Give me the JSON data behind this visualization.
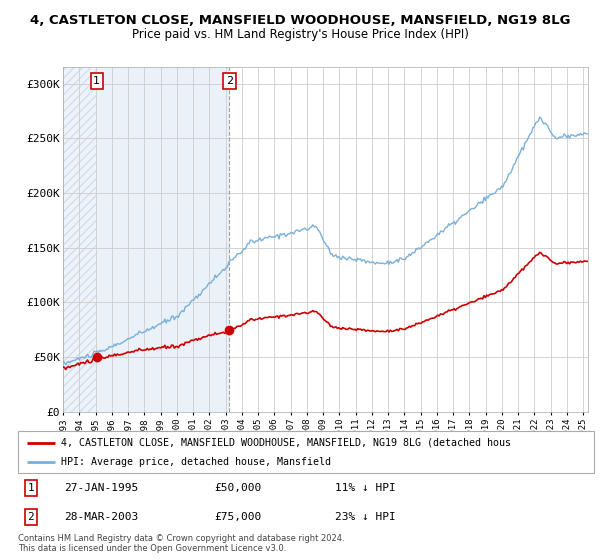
{
  "title": "4, CASTLETON CLOSE, MANSFIELD WOODHOUSE, MANSFIELD, NG19 8LG",
  "subtitle": "Price paid vs. HM Land Registry's House Price Index (HPI)",
  "yticks": [
    0,
    50000,
    100000,
    150000,
    200000,
    250000,
    300000
  ],
  "ytick_labels": [
    "£0",
    "£50K",
    "£100K",
    "£150K",
    "£200K",
    "£250K",
    "£300K"
  ],
  "ylim": [
    0,
    315000
  ],
  "xlim": [
    1993,
    2025.3
  ],
  "sale1_date": 1995.08,
  "sale1_price": 50000,
  "sale2_date": 2003.24,
  "sale2_price": 75000,
  "legend1_text": "4, CASTLETON CLOSE, MANSFIELD WOODHOUSE, MANSFIELD, NG19 8LG (detached hous",
  "legend2_text": "HPI: Average price, detached house, Mansfield",
  "note1_date": "27-JAN-1995",
  "note1_price": "£50,000",
  "note1_hpi": "11% ↓ HPI",
  "note2_date": "28-MAR-2003",
  "note2_price": "£75,000",
  "note2_hpi": "23% ↓ HPI",
  "footer": "Contains HM Land Registry data © Crown copyright and database right 2024.\nThis data is licensed under the Open Government Licence v3.0.",
  "hpi_color": "#7ab0d8",
  "price_color": "#cc0000",
  "annotation_box_color": "#cc0000",
  "shading_hatch_color": "#c8d8e8",
  "shading_solid_color": "#dce8f4"
}
